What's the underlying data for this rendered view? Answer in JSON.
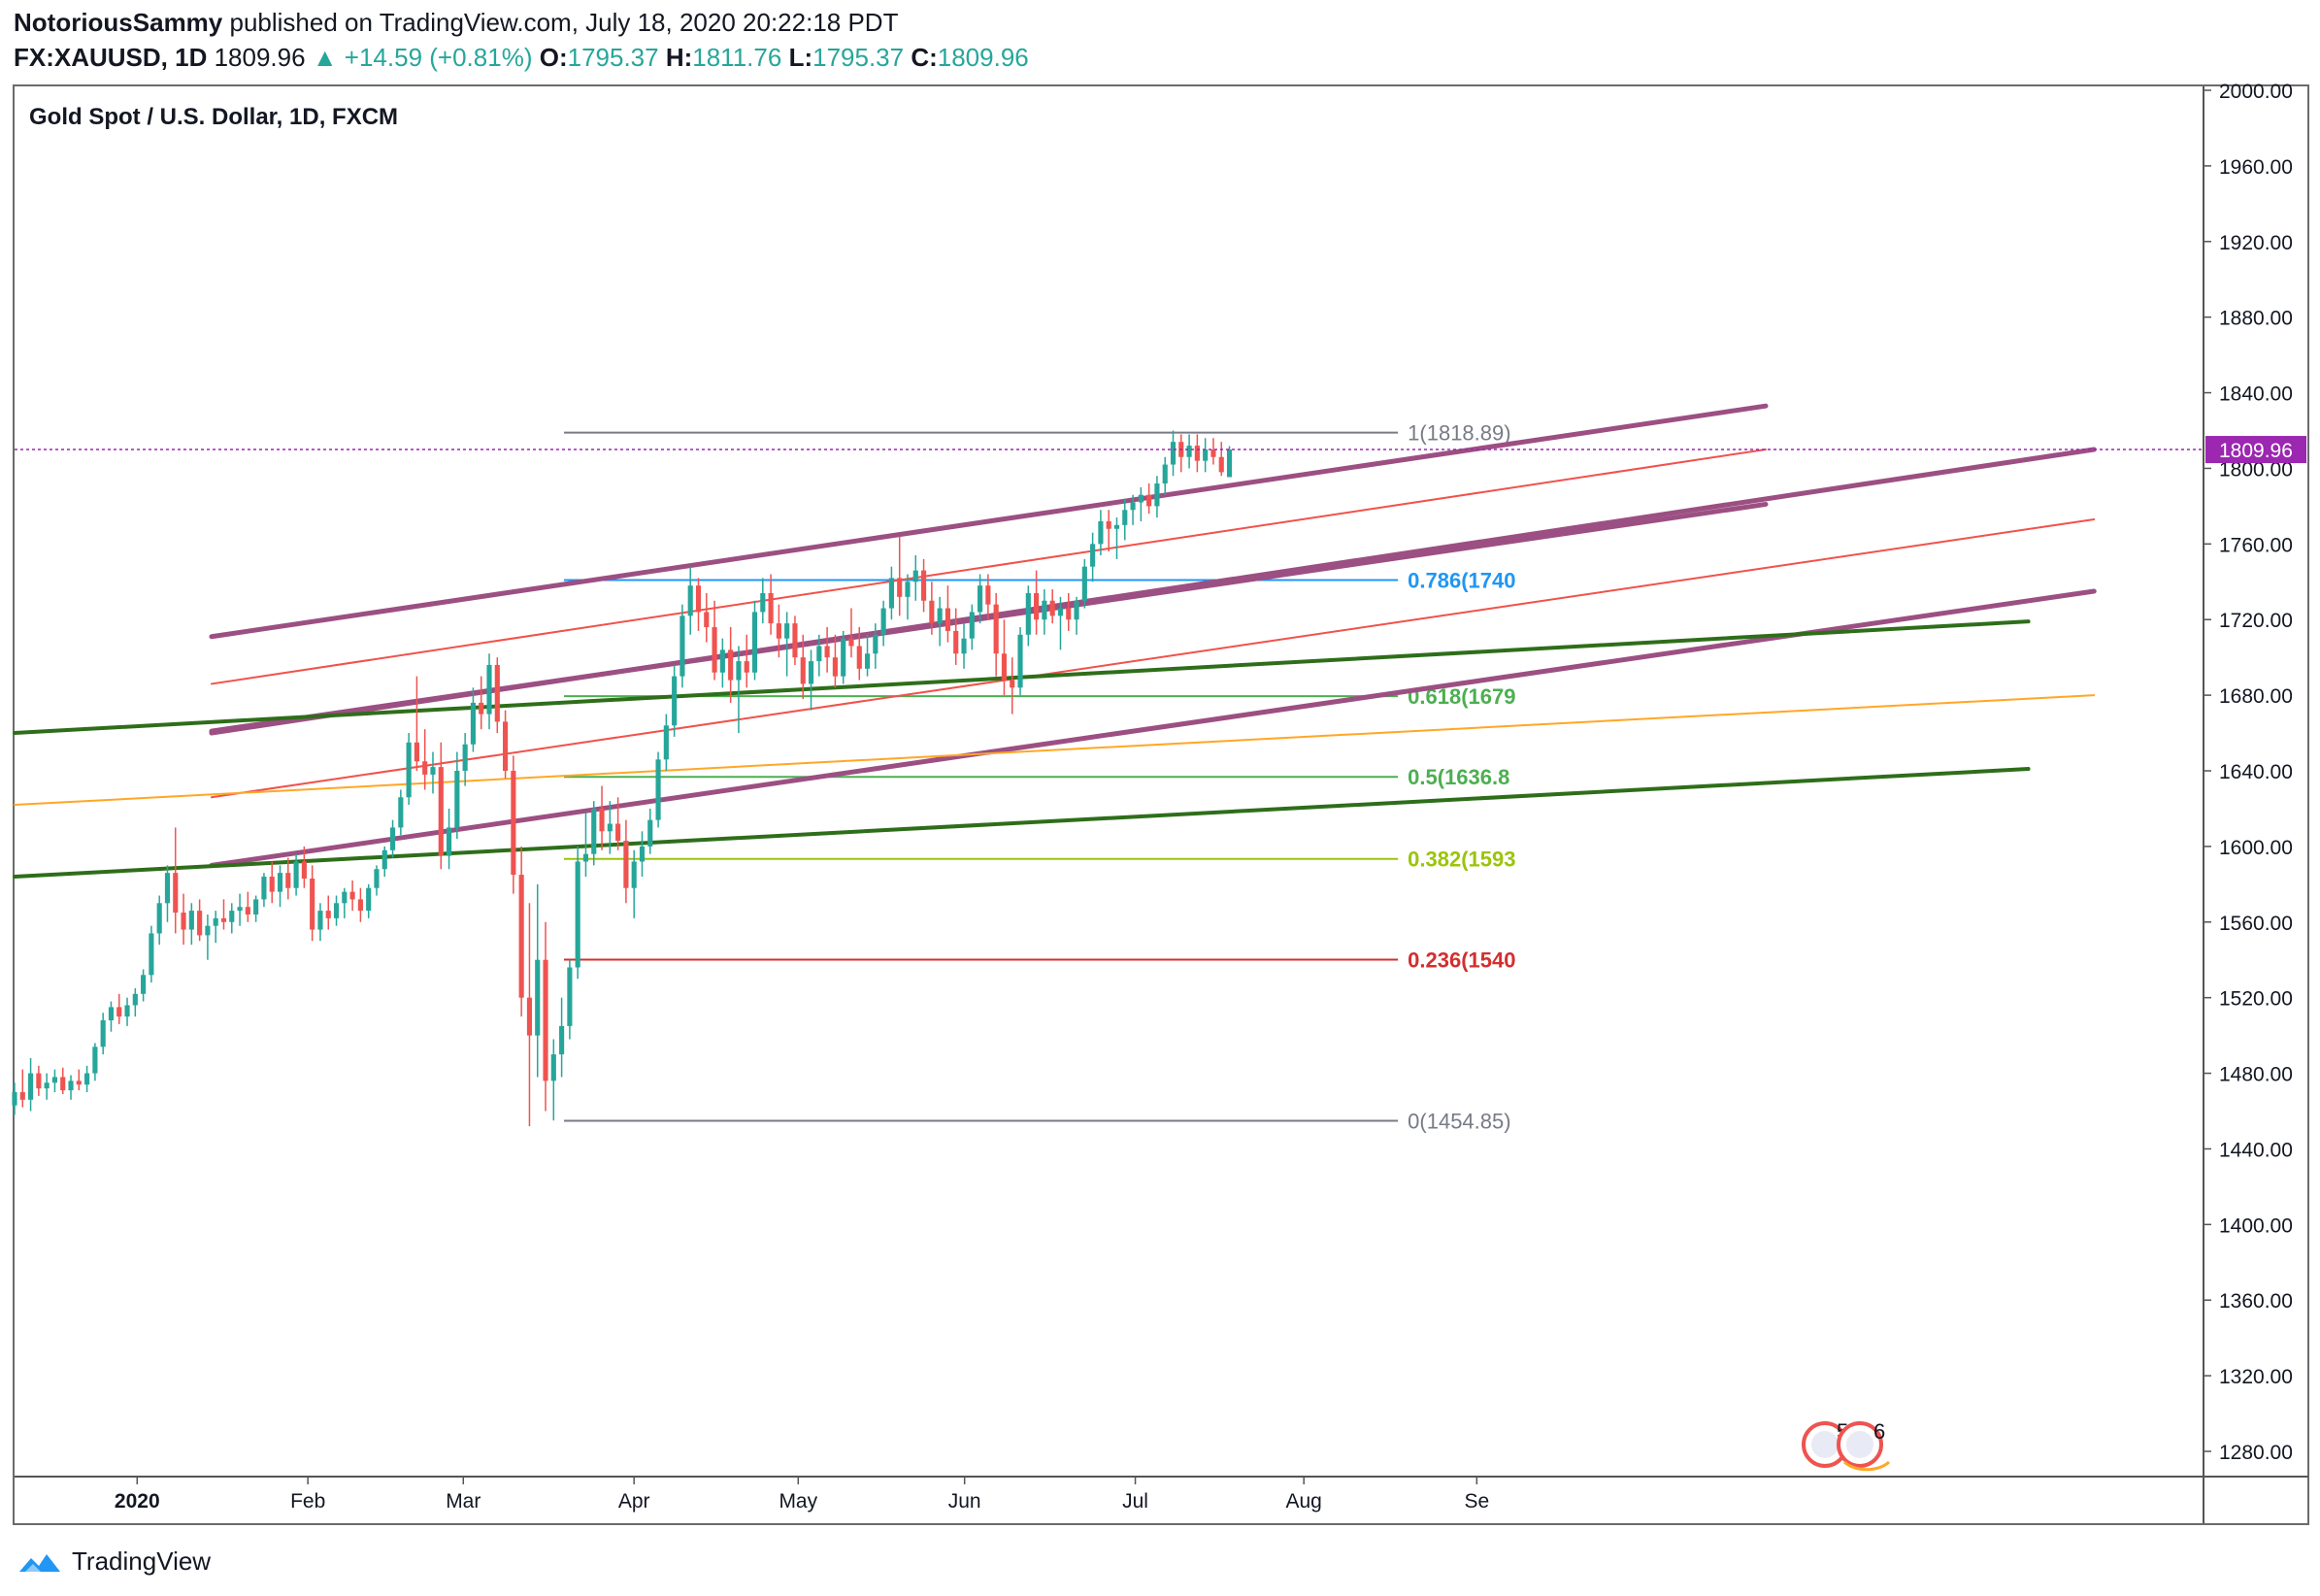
{
  "header": {
    "author": "NotoriousSammy",
    "published_text": "published on TradingView.com, July 18, 2020 20:22:18 PDT",
    "symbol": "FX:XAUUSD, 1D",
    "last": "1809.96",
    "change": "+14.59 (+0.81%)",
    "o_label": "O:",
    "o_value": "1795.37",
    "h_label": "H:",
    "h_value": "1811.76",
    "l_label": "L:",
    "l_value": "1795.37",
    "c_label": "C:",
    "c_value": "1809.96"
  },
  "footer": {
    "brand": "TradingView",
    "icon": "tradingview-logo-icon"
  },
  "colors": {
    "up": "#26a69a",
    "down": "#ef5350",
    "purple": "#9c4f82",
    "green": "#2e6e1a",
    "red_line": "#f0524b",
    "orange": "#ffa726",
    "price_tag": "#9c27b0"
  },
  "chart_data": {
    "type": "candlestick",
    "title": "Gold Spot / U.S. Dollar, 1D, FXCM",
    "ylim": [
      1270,
      2010
    ],
    "y_ticks": [
      "2000.00",
      "1960.00",
      "1920.00",
      "1880.00",
      "1840.00",
      "1800.00",
      "1760.00",
      "1720.00",
      "1680.00",
      "1640.00",
      "1600.00",
      "1560.00",
      "1520.00",
      "1480.00",
      "1440.00",
      "1400.00",
      "1360.00",
      "1320.00",
      "1280.00"
    ],
    "x_ticks": [
      "2020",
      "Feb",
      "Mar",
      "Apr",
      "May",
      "Jun",
      "Jul",
      "Aug",
      "Se"
    ],
    "current_price": "1809.96",
    "candles": [
      [
        1463,
        1475,
        1458,
        1470
      ],
      [
        1470,
        1482,
        1462,
        1466
      ],
      [
        1466,
        1488,
        1460,
        1480
      ],
      [
        1480,
        1484,
        1468,
        1472
      ],
      [
        1472,
        1480,
        1466,
        1475
      ],
      [
        1475,
        1482,
        1470,
        1478
      ],
      [
        1478,
        1483,
        1469,
        1471
      ],
      [
        1471,
        1479,
        1466,
        1476
      ],
      [
        1476,
        1482,
        1471,
        1474
      ],
      [
        1474,
        1484,
        1470,
        1480
      ],
      [
        1480,
        1496,
        1476,
        1494
      ],
      [
        1494,
        1512,
        1490,
        1508
      ],
      [
        1508,
        1518,
        1502,
        1515
      ],
      [
        1515,
        1522,
        1506,
        1510
      ],
      [
        1510,
        1520,
        1505,
        1516
      ],
      [
        1516,
        1525,
        1510,
        1522
      ],
      [
        1522,
        1535,
        1518,
        1532
      ],
      [
        1532,
        1558,
        1528,
        1554
      ],
      [
        1554,
        1574,
        1548,
        1570
      ],
      [
        1570,
        1590,
        1560,
        1586
      ],
      [
        1586,
        1610,
        1554,
        1565
      ],
      [
        1565,
        1575,
        1548,
        1556
      ],
      [
        1556,
        1570,
        1548,
        1566
      ],
      [
        1566,
        1572,
        1550,
        1553
      ],
      [
        1553,
        1564,
        1540,
        1558
      ],
      [
        1558,
        1566,
        1549,
        1562
      ],
      [
        1562,
        1572,
        1556,
        1560
      ],
      [
        1560,
        1570,
        1554,
        1566
      ],
      [
        1566,
        1575,
        1558,
        1568
      ],
      [
        1568,
        1576,
        1560,
        1564
      ],
      [
        1564,
        1574,
        1560,
        1572
      ],
      [
        1572,
        1586,
        1568,
        1584
      ],
      [
        1584,
        1592,
        1570,
        1576
      ],
      [
        1576,
        1590,
        1568,
        1586
      ],
      [
        1586,
        1594,
        1572,
        1578
      ],
      [
        1578,
        1596,
        1574,
        1592
      ],
      [
        1592,
        1600,
        1578,
        1583
      ],
      [
        1583,
        1590,
        1550,
        1556
      ],
      [
        1556,
        1570,
        1550,
        1566
      ],
      [
        1566,
        1574,
        1556,
        1562
      ],
      [
        1562,
        1574,
        1558,
        1570
      ],
      [
        1570,
        1578,
        1562,
        1576
      ],
      [
        1576,
        1582,
        1566,
        1572
      ],
      [
        1572,
        1578,
        1560,
        1566
      ],
      [
        1566,
        1580,
        1562,
        1578
      ],
      [
        1578,
        1590,
        1574,
        1588
      ],
      [
        1588,
        1600,
        1584,
        1598
      ],
      [
        1598,
        1614,
        1594,
        1610
      ],
      [
        1610,
        1630,
        1606,
        1626
      ],
      [
        1626,
        1660,
        1622,
        1655
      ],
      [
        1655,
        1690,
        1640,
        1645
      ],
      [
        1645,
        1662,
        1630,
        1638
      ],
      [
        1638,
        1650,
        1628,
        1642
      ],
      [
        1642,
        1655,
        1588,
        1595
      ],
      [
        1595,
        1620,
        1588,
        1610
      ],
      [
        1610,
        1650,
        1604,
        1640
      ],
      [
        1640,
        1660,
        1632,
        1654
      ],
      [
        1654,
        1684,
        1650,
        1676
      ],
      [
        1676,
        1690,
        1662,
        1670
      ],
      [
        1670,
        1702,
        1662,
        1696
      ],
      [
        1696,
        1700,
        1660,
        1666
      ],
      [
        1666,
        1672,
        1636,
        1640
      ],
      [
        1640,
        1648,
        1575,
        1585
      ],
      [
        1585,
        1600,
        1510,
        1520
      ],
      [
        1520,
        1570,
        1452,
        1500
      ],
      [
        1500,
        1580,
        1478,
        1540
      ],
      [
        1540,
        1560,
        1460,
        1476
      ],
      [
        1476,
        1498,
        1455,
        1490
      ],
      [
        1490,
        1520,
        1478,
        1505
      ],
      [
        1505,
        1540,
        1498,
        1536
      ],
      [
        1536,
        1600,
        1530,
        1592
      ],
      [
        1592,
        1618,
        1584,
        1596
      ],
      [
        1596,
        1624,
        1590,
        1620
      ],
      [
        1620,
        1632,
        1598,
        1608
      ],
      [
        1608,
        1624,
        1596,
        1612
      ],
      [
        1612,
        1626,
        1598,
        1603
      ],
      [
        1603,
        1614,
        1570,
        1578
      ],
      [
        1578,
        1598,
        1562,
        1592
      ],
      [
        1592,
        1608,
        1584,
        1600
      ],
      [
        1600,
        1620,
        1596,
        1614
      ],
      [
        1614,
        1650,
        1610,
        1646
      ],
      [
        1646,
        1670,
        1640,
        1664
      ],
      [
        1664,
        1696,
        1658,
        1690
      ],
      [
        1690,
        1728,
        1684,
        1722
      ],
      [
        1722,
        1748,
        1712,
        1738
      ],
      [
        1738,
        1742,
        1714,
        1724
      ],
      [
        1724,
        1734,
        1708,
        1716
      ],
      [
        1716,
        1730,
        1688,
        1692
      ],
      [
        1692,
        1710,
        1684,
        1704
      ],
      [
        1704,
        1716,
        1676,
        1688
      ],
      [
        1688,
        1706,
        1660,
        1698
      ],
      [
        1698,
        1712,
        1684,
        1692
      ],
      [
        1692,
        1730,
        1688,
        1724
      ],
      [
        1724,
        1742,
        1718,
        1734
      ],
      [
        1734,
        1744,
        1712,
        1718
      ],
      [
        1718,
        1728,
        1700,
        1710
      ],
      [
        1710,
        1724,
        1690,
        1718
      ],
      [
        1718,
        1722,
        1696,
        1700
      ],
      [
        1700,
        1712,
        1678,
        1686
      ],
      [
        1686,
        1704,
        1672,
        1698
      ],
      [
        1698,
        1712,
        1690,
        1706
      ],
      [
        1706,
        1716,
        1692,
        1700
      ],
      [
        1700,
        1712,
        1684,
        1690
      ],
      [
        1690,
        1714,
        1686,
        1710
      ],
      [
        1710,
        1726,
        1700,
        1706
      ],
      [
        1706,
        1716,
        1688,
        1694
      ],
      [
        1694,
        1712,
        1690,
        1702
      ],
      [
        1702,
        1718,
        1694,
        1712
      ],
      [
        1712,
        1730,
        1706,
        1726
      ],
      [
        1726,
        1748,
        1720,
        1742
      ],
      [
        1742,
        1764,
        1722,
        1732
      ],
      [
        1732,
        1744,
        1720,
        1740
      ],
      [
        1740,
        1754,
        1730,
        1746
      ],
      [
        1746,
        1752,
        1724,
        1730
      ],
      [
        1730,
        1740,
        1712,
        1718
      ],
      [
        1718,
        1732,
        1706,
        1726
      ],
      [
        1726,
        1738,
        1708,
        1714
      ],
      [
        1714,
        1726,
        1696,
        1702
      ],
      [
        1702,
        1718,
        1694,
        1710
      ],
      [
        1710,
        1728,
        1704,
        1724
      ],
      [
        1724,
        1744,
        1718,
        1738
      ],
      [
        1738,
        1744,
        1720,
        1728
      ],
      [
        1728,
        1734,
        1690,
        1702
      ],
      [
        1702,
        1720,
        1680,
        1688
      ],
      [
        1688,
        1700,
        1670,
        1684
      ],
      [
        1684,
        1716,
        1680,
        1712
      ],
      [
        1712,
        1738,
        1706,
        1734
      ],
      [
        1734,
        1746,
        1712,
        1720
      ],
      [
        1720,
        1736,
        1712,
        1730
      ],
      [
        1730,
        1736,
        1718,
        1722
      ],
      [
        1722,
        1732,
        1704,
        1726
      ],
      [
        1726,
        1734,
        1714,
        1720
      ],
      [
        1720,
        1732,
        1712,
        1730
      ],
      [
        1730,
        1752,
        1726,
        1748
      ],
      [
        1748,
        1766,
        1740,
        1760
      ],
      [
        1760,
        1778,
        1754,
        1772
      ],
      [
        1772,
        1778,
        1756,
        1768
      ],
      [
        1768,
        1774,
        1752,
        1770
      ],
      [
        1770,
        1784,
        1762,
        1778
      ],
      [
        1778,
        1786,
        1770,
        1782
      ],
      [
        1782,
        1790,
        1772,
        1786
      ],
      [
        1786,
        1792,
        1776,
        1780
      ],
      [
        1780,
        1796,
        1774,
        1792
      ],
      [
        1792,
        1806,
        1786,
        1802
      ],
      [
        1802,
        1820,
        1796,
        1814
      ],
      [
        1814,
        1818,
        1798,
        1806
      ],
      [
        1806,
        1818,
        1800,
        1812
      ],
      [
        1812,
        1818,
        1798,
        1804
      ],
      [
        1804,
        1816,
        1798,
        1810
      ],
      [
        1810,
        1816,
        1802,
        1806
      ],
      [
        1806,
        1814,
        1796,
        1798
      ],
      [
        1795.37,
        1811.76,
        1795.37,
        1809.96
      ]
    ],
    "fibonacci": [
      {
        "level": "1",
        "label": "1(1818.89)",
        "value": 1818.89
      },
      {
        "level": "0.786",
        "label": "0.786(1740",
        "value": 1740.9
      },
      {
        "level": "0.618",
        "label": "0.618(1679",
        "value": 1679.5
      },
      {
        "level": "0.5",
        "label": "0.5(1636.8",
        "value": 1636.8
      },
      {
        "level": "0.382",
        "label": "0.382(1593",
        "value": 1593.4
      },
      {
        "level": "0.236",
        "label": "0.236(1540",
        "value": 1540.1
      },
      {
        "level": "0",
        "label": "0(1454.85)",
        "value": 1454.85
      }
    ],
    "trendlines": [
      {
        "color": "purple",
        "from": [
          0.09,
          1711
        ],
        "to": [
          0.8,
          1833
        ]
      },
      {
        "color": "purple",
        "from": [
          0.09,
          1661
        ],
        "to": [
          0.8,
          1781
        ]
      },
      {
        "color": "purple",
        "from": [
          0.09,
          1590
        ],
        "to": [
          0.95,
          1735
        ]
      },
      {
        "color": "purple",
        "from": [
          0.09,
          1660
        ],
        "to": [
          0.95,
          1810
        ]
      },
      {
        "color": "red",
        "from": [
          0.09,
          1686
        ],
        "to": [
          0.8,
          1810
        ]
      },
      {
        "color": "red",
        "from": [
          0.09,
          1626
        ],
        "to": [
          0.95,
          1773
        ]
      },
      {
        "color": "green",
        "from": [
          0.0,
          1660
        ],
        "to": [
          0.92,
          1719
        ]
      },
      {
        "color": "green",
        "from": [
          0.0,
          1584
        ],
        "to": [
          0.92,
          1641
        ]
      },
      {
        "color": "orange",
        "from": [
          0.0,
          1622
        ],
        "to": [
          0.95,
          1680
        ]
      }
    ]
  }
}
